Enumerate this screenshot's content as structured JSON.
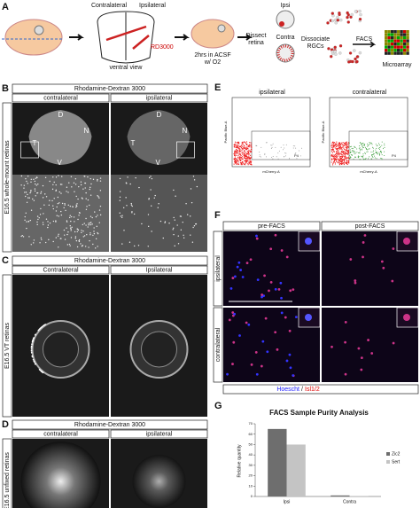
{
  "panels": {
    "a": {
      "label": "A",
      "contralateral": "Contralateral",
      "ipsilateral": "Ipsilateral",
      "tracer": "RD3000",
      "view": "ventral view",
      "incubate": [
        "2hrs in ACSF",
        "w/ O2"
      ],
      "dissect": [
        "Dissect",
        "retina"
      ],
      "ipsi": "Ipsi",
      "contra": "Contra",
      "dissociate": [
        "Dissociate",
        "RGCs"
      ],
      "facs": "FACS",
      "microarray": "Microarray"
    },
    "b": {
      "label": "B",
      "header": "Rhodamine-Dextran 3000",
      "cols": [
        "contralateral",
        "ipsilateral"
      ],
      "side": "E16.5 whole-mount retinas",
      "orient": [
        "D",
        "N",
        "T",
        "V"
      ]
    },
    "c": {
      "label": "C",
      "header": "Rhodamine-Dextran 3000",
      "cols": [
        "Contralateral",
        "Ipsilateral"
      ],
      "side": "E16.5 VT retinas"
    },
    "d": {
      "label": "D",
      "header": "Rhodamine-Dextran 3000",
      "cols": [
        "contralateral",
        "ipsilateral"
      ],
      "side": "E16.5 unfixed retinas"
    },
    "e": {
      "label": "E",
      "plots": [
        "ipsilateral",
        "contralateral"
      ],
      "ylabel": "Pacific Blue-A",
      "xlabel": "mCherry-A",
      "gate": "P4"
    },
    "f": {
      "label": "F",
      "cols": [
        "pre-FACS",
        "post-FACS"
      ],
      "rows": [
        "ipsilateral",
        "contralateral"
      ],
      "legend": [
        "Hoescht",
        "/",
        "Isl1/2"
      ]
    },
    "g": {
      "label": "G"
    }
  },
  "chart_data": {
    "type": "bar",
    "title": "FACS Sample Purity Analysis",
    "ylabel": "Relative quantity",
    "categories": [
      "Ipsi",
      "Contra"
    ],
    "series": [
      {
        "name": "Zic2",
        "color": "#6e6e6e",
        "values": [
          65,
          1
        ]
      },
      {
        "name": "Sert",
        "color": "#c4c4c4",
        "values": [
          50,
          0.5
        ]
      }
    ],
    "ylim": [
      0,
      70
    ],
    "yticks": [
      0,
      10,
      20,
      30,
      40,
      50,
      60,
      70
    ]
  }
}
